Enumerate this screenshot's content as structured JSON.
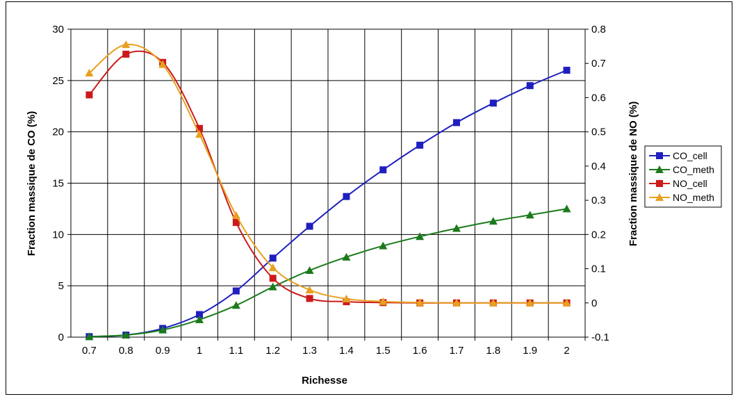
{
  "chart_data": {
    "type": "line",
    "title": "",
    "xlabel": "Richesse",
    "ylabel_left": "Fraction massique de CO (%)",
    "ylabel_right": "Fraction massique de NO (%)",
    "x": [
      0.7,
      0.8,
      0.9,
      1.0,
      1.1,
      1.2,
      1.3,
      1.4,
      1.5,
      1.6,
      1.7,
      1.8,
      1.9,
      2.0
    ],
    "x_tick_labels": [
      "0.7",
      "0.8",
      "0.9",
      "1",
      "1.1",
      "1.2",
      "1.3",
      "1.4",
      "1.5",
      "1.6",
      "1.7",
      "1.8",
      "1.9",
      "2"
    ],
    "ylim_left": [
      0,
      30
    ],
    "y_left_ticks": [
      "0",
      "5",
      "10",
      "15",
      "20",
      "25",
      "30"
    ],
    "ylim_right": [
      -0.1,
      0.8
    ],
    "y_right_ticks": [
      "-0.1",
      "0",
      "0.1",
      "0.2",
      "0.3",
      "0.4",
      "0.5",
      "0.6",
      "0.7",
      "0.8"
    ],
    "grid": true,
    "legend_position": "right",
    "series": [
      {
        "name": "CO_cell",
        "axis": "left",
        "color": "#1f1fbf",
        "marker": "square",
        "values": [
          0.05,
          0.2,
          0.85,
          2.2,
          4.5,
          7.7,
          10.8,
          13.7,
          16.3,
          18.7,
          20.9,
          22.8,
          24.5,
          26.0
        ]
      },
      {
        "name": "CO_meth",
        "axis": "left",
        "color": "#1a7a1a",
        "marker": "triangle",
        "values": [
          0.05,
          0.2,
          0.7,
          1.7,
          3.1,
          4.9,
          6.5,
          7.8,
          8.9,
          9.8,
          10.6,
          11.3,
          11.9,
          12.5
        ]
      },
      {
        "name": "NO_cell",
        "axis": "right",
        "color": "#cc1a1a",
        "marker": "square",
        "values": [
          0.608,
          0.727,
          0.703,
          0.51,
          0.235,
          0.072,
          0.013,
          0.0035,
          0.001,
          0.0,
          0.0,
          0.0,
          0.0,
          0.0
        ]
      },
      {
        "name": "NO_meth",
        "axis": "right",
        "color": "#e8a020",
        "marker": "triangle",
        "values": [
          0.672,
          0.755,
          0.697,
          0.493,
          0.256,
          0.103,
          0.038,
          0.012,
          0.004,
          0.001,
          0.0,
          0.0,
          0.0,
          0.0
        ]
      }
    ]
  }
}
